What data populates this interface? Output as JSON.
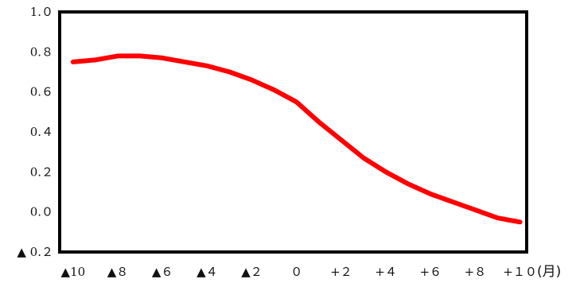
{
  "chart_data": {
    "type": "line",
    "x": [
      -10,
      -9,
      -8,
      -7,
      -6,
      -5,
      -4,
      -3,
      -2,
      -1,
      0,
      1,
      2,
      3,
      4,
      5,
      6,
      7,
      8,
      9,
      10
    ],
    "series": [
      {
        "values": [
          0.75,
          0.76,
          0.78,
          0.78,
          0.77,
          0.75,
          0.73,
          0.7,
          0.66,
          0.61,
          0.55,
          0.45,
          0.36,
          0.27,
          0.2,
          0.14,
          0.09,
          0.05,
          0.01,
          -0.03,
          -0.05
        ],
        "color": "#ff0000"
      }
    ],
    "x_ticks": [
      {
        "value": -10,
        "label": "▲10"
      },
      {
        "value": -8,
        "label": "▲８"
      },
      {
        "value": -6,
        "label": "▲６"
      },
      {
        "value": -4,
        "label": "▲４"
      },
      {
        "value": -2,
        "label": "▲２"
      },
      {
        "value": 0,
        "label": "０"
      },
      {
        "value": 2,
        "label": "+２"
      },
      {
        "value": 4,
        "label": "+４"
      },
      {
        "value": 6,
        "label": "+６"
      },
      {
        "value": 8,
        "label": "+８"
      },
      {
        "value": 10,
        "label": "+１０"
      }
    ],
    "y_ticks": [
      {
        "value": 1.0,
        "label": "1.０"
      },
      {
        "value": 0.8,
        "label": "0.８"
      },
      {
        "value": 0.6,
        "label": "0.６"
      },
      {
        "value": 0.4,
        "label": "0.４"
      },
      {
        "value": 0.2,
        "label": "0.２"
      },
      {
        "value": 0.0,
        "label": "0.０"
      },
      {
        "value": -0.2,
        "label": "▲ 0.２"
      }
    ],
    "x_unit": "(月)",
    "xlim": [
      -10.6,
      10.3
    ],
    "ylim": [
      -0.2,
      1.0
    ],
    "grid": false,
    "frame_color": "#000000"
  }
}
